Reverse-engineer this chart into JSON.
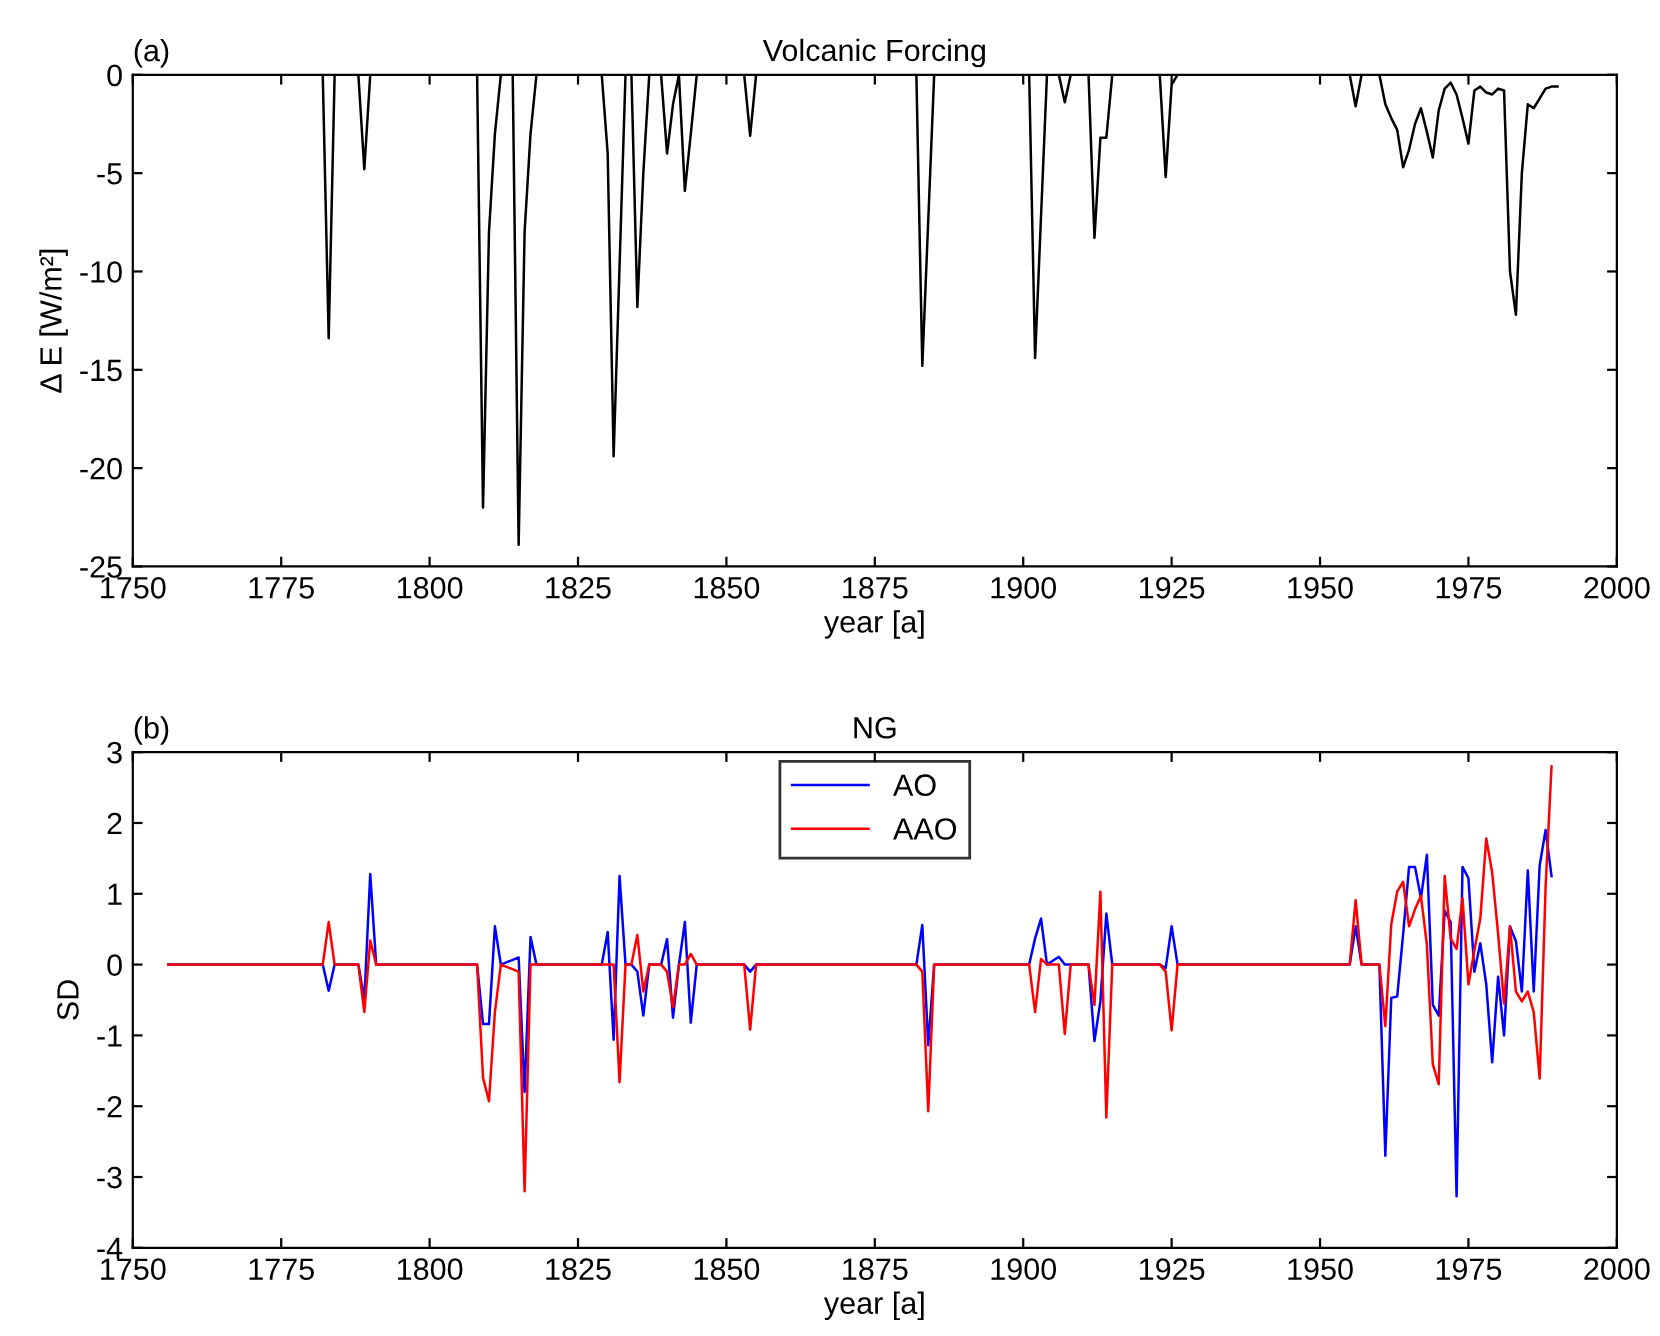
{
  "chart_data": [
    {
      "type": "line",
      "title": "Volcanic Forcing",
      "xlabel": "year [a]",
      "ylabel": "Δ E [W/m²]",
      "annotations": [
        "(a)"
      ],
      "xlim": [
        1750,
        2000
      ],
      "xticks": [
        1750,
        1775,
        1800,
        1825,
        1850,
        1875,
        1900,
        1925,
        1950,
        1975,
        2000
      ],
      "ylim": [
        -25,
        0
      ],
      "yticks": [
        -25,
        -20,
        -15,
        -10,
        -5,
        0
      ],
      "grid": false,
      "legend": false,
      "series": [
        {
          "color": "#000000",
          "x": [
            1756,
            1782,
            1783,
            1784,
            1788,
            1789,
            1790,
            1808,
            1809,
            1810,
            1811,
            1812,
            1814,
            1815,
            1816,
            1817,
            1818,
            1829,
            1830,
            1831,
            1833,
            1834,
            1835,
            1836,
            1837,
            1839,
            1840,
            1841,
            1842,
            1843,
            1844,
            1845,
            1853,
            1854,
            1855,
            1882,
            1883,
            1885,
            1901,
            1902,
            1904,
            1906,
            1907,
            1908,
            1911,
            1912,
            1913,
            1914,
            1915,
            1923,
            1924,
            1925,
            1926,
            1955,
            1956,
            1957,
            1958,
            1959,
            1960,
            1961,
            1962,
            1963,
            1964,
            1965,
            1966,
            1967,
            1968,
            1969,
            1970,
            1971,
            1972,
            1973,
            1974,
            1975,
            1976,
            1977,
            1978,
            1979,
            1980,
            1981,
            1982,
            1983,
            1984,
            1985,
            1986,
            1987,
            1988,
            1989,
            1990
          ],
          "values": [
            0,
            0,
            -13.4,
            0,
            0,
            -4.8,
            0,
            0,
            -22.0,
            -8,
            -3,
            0,
            0,
            -23.9,
            -8,
            -3,
            0,
            0,
            -4,
            -19.4,
            0,
            0,
            -11.8,
            -5,
            0,
            0,
            -4.0,
            -1.5,
            0,
            -5.9,
            -3,
            0,
            0,
            -3.1,
            0,
            0,
            -14.8,
            0,
            0,
            -14.4,
            0,
            0,
            -1.4,
            0,
            0,
            -8.3,
            -3.2,
            -3.2,
            0,
            0,
            -5.2,
            -0.5,
            0,
            0,
            -1.6,
            0,
            0,
            0,
            0,
            -1.5,
            -2.2,
            -2.8,
            -4.7,
            -3.8,
            -2.5,
            -1.7,
            -2.9,
            -4.2,
            -1.8,
            -0.7,
            -0.4,
            -1.0,
            -2.2,
            -3.5,
            -0.8,
            -0.6,
            -0.9,
            -1.0,
            -0.7,
            -0.8,
            -10.0,
            -12.2,
            -5,
            -1.5,
            -1.7,
            -1.2,
            -0.7,
            -0.6,
            -0.6
          ]
        }
      ]
    },
    {
      "type": "line",
      "title": "NG",
      "xlabel": "year [a]",
      "ylabel": "SD",
      "annotations": [
        "(b)"
      ],
      "xlim": [
        1750,
        2000
      ],
      "xticks": [
        1750,
        1775,
        1800,
        1825,
        1850,
        1875,
        1900,
        1925,
        1950,
        1975,
        2000
      ],
      "ylim": [
        -4,
        3
      ],
      "yticks": [
        -4,
        -3,
        -2,
        -1,
        0,
        1,
        2,
        3
      ],
      "grid": false,
      "legend": "top",
      "x": [
        1756,
        1782,
        1783,
        1784,
        1788,
        1789,
        1790,
        1791,
        1808,
        1809,
        1810,
        1811,
        1812,
        1815,
        1816,
        1817,
        1818,
        1829,
        1830,
        1831,
        1832,
        1833,
        1834,
        1835,
        1836,
        1837,
        1839,
        1840,
        1841,
        1842,
        1843,
        1844,
        1845,
        1853,
        1854,
        1855,
        1882,
        1883,
        1884,
        1885,
        1901,
        1902,
        1903,
        1904,
        1906,
        1907,
        1908,
        1911,
        1912,
        1913,
        1914,
        1915,
        1923,
        1924,
        1925,
        1926,
        1955,
        1956,
        1957,
        1960,
        1961,
        1962,
        1963,
        1964,
        1965,
        1966,
        1967,
        1968,
        1969,
        1970,
        1971,
        1972,
        1973,
        1974,
        1975,
        1976,
        1977,
        1978,
        1979,
        1980,
        1981,
        1982,
        1983,
        1984,
        1985,
        1986,
        1987,
        1988,
        1989
      ],
      "series": [
        {
          "name": "AO",
          "color": "#0000ff",
          "values": [
            0,
            0,
            -0.37,
            0,
            0,
            -0.5,
            1.28,
            0,
            0,
            -0.84,
            -0.84,
            0.54,
            0,
            0.1,
            -1.8,
            0.39,
            0,
            0,
            0.46,
            -1.06,
            1.25,
            0,
            0,
            -0.1,
            -0.72,
            0,
            0,
            0.36,
            -0.75,
            0,
            0.6,
            -0.82,
            0,
            0,
            -0.1,
            0,
            0,
            0.56,
            -1.14,
            0,
            0,
            0.37,
            0.65,
            0,
            0.11,
            0,
            0,
            0,
            -1.08,
            -0.52,
            0.72,
            0,
            0,
            -0.05,
            0.54,
            0,
            0,
            0.54,
            0,
            0,
            -2.7,
            -0.47,
            -0.45,
            0.43,
            1.38,
            1.38,
            0.94,
            1.55,
            -0.57,
            -0.72,
            0.76,
            0.6,
            -3.27,
            1.38,
            1.22,
            -0.1,
            0.3,
            -0.28,
            -1.38,
            -0.17,
            -1.0,
            0.54,
            0.33,
            -0.38,
            1.33,
            -0.38,
            1.4,
            1.9,
            1.25
          ]
        },
        {
          "name": "AAO",
          "color": "#ff0000",
          "values": [
            0,
            0,
            0.6,
            0,
            0,
            -0.67,
            0.34,
            0,
            0,
            -1.6,
            -1.93,
            -0.67,
            0,
            -0.1,
            -3.2,
            0,
            0,
            0,
            0,
            0,
            -1.66,
            0,
            0,
            0.42,
            -0.38,
            0,
            0,
            -0.1,
            -0.6,
            0,
            0,
            0.15,
            0,
            0,
            -0.92,
            0,
            0,
            -0.1,
            -2.07,
            0,
            0,
            -0.67,
            0.08,
            0,
            0,
            -0.98,
            0,
            0,
            -0.57,
            1.03,
            -2.16,
            0,
            0,
            -0.1,
            -0.93,
            0,
            0,
            0.91,
            0,
            0,
            -0.87,
            0.57,
            1.03,
            1.17,
            0.54,
            0.78,
            0.97,
            0.28,
            -1.41,
            -1.69,
            1.25,
            0.37,
            0.22,
            0.94,
            -0.28,
            0.2,
            0.65,
            1.78,
            1.3,
            0.43,
            -0.55,
            0.54,
            -0.38,
            -0.52,
            -0.38,
            -0.67,
            -1.61,
            1.1,
            2.8
          ]
        }
      ]
    }
  ]
}
